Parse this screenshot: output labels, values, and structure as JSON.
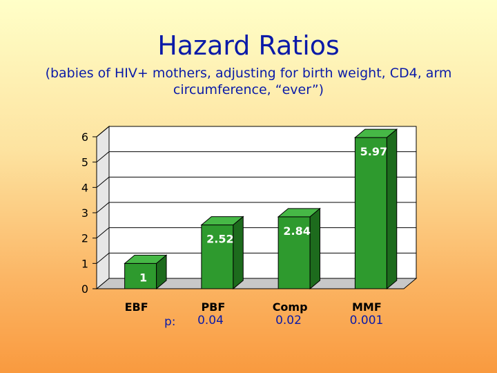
{
  "slide": {
    "title": "Hazard Ratios",
    "subtitle": "(babies of HIV+ mothers, adjusting for birth weight, CD4, arm circumference, “ever”)"
  },
  "chart_data": {
    "type": "bar",
    "title": "",
    "xlabel": "",
    "ylabel": "",
    "categories": [
      "EBF",
      "PBF",
      "Comp",
      "MMF"
    ],
    "values": [
      1,
      2.52,
      2.84,
      5.97
    ],
    "data_labels": [
      "1",
      "2.52",
      "2.84",
      "5.97"
    ],
    "ylim": [
      0,
      6
    ],
    "yticks": [
      "0",
      "1",
      "2",
      "3",
      "4",
      "5",
      "6"
    ],
    "grid": true,
    "style": "3d",
    "bar_color": "#2e9a2e"
  },
  "p_values": {
    "label": "p:",
    "values": [
      "0.04",
      "0.02",
      "0.001"
    ]
  }
}
